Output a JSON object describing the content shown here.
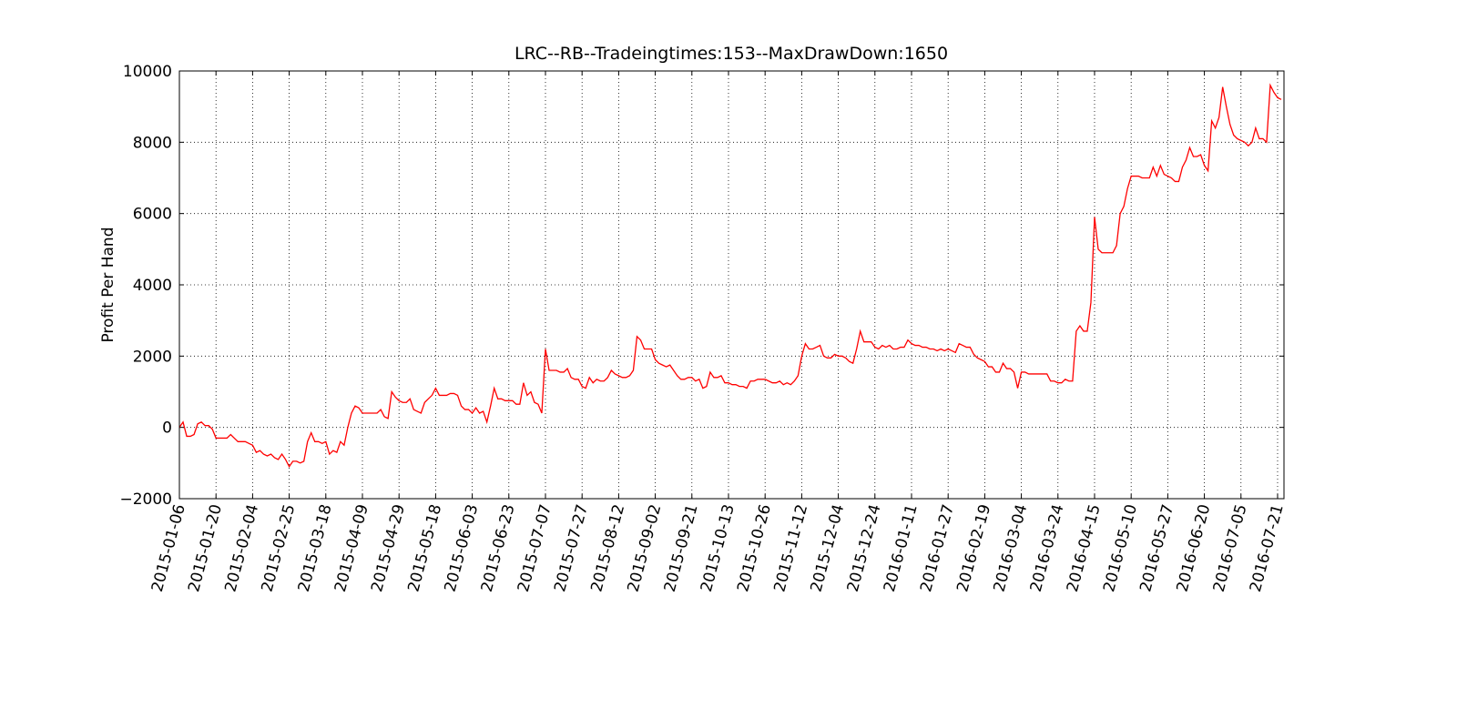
{
  "chart_data": {
    "type": "line",
    "title": "LRC--RB--Tradeingtimes:153--MaxDrawDown:1650",
    "ylabel": "Profit Per Hand",
    "color": "#ff0000",
    "grid": true,
    "ylim": [
      -2000,
      10000
    ],
    "yticks": [
      {
        "value": -2000,
        "label": "−2000"
      },
      0,
      2000,
      4000,
      6000,
      8000,
      10000
    ],
    "categories": [
      "2015-01-06",
      null,
      null,
      null,
      null,
      null,
      null,
      null,
      null,
      null,
      "2015-01-20",
      null,
      null,
      null,
      null,
      null,
      null,
      null,
      null,
      null,
      "2015-02-04",
      null,
      null,
      null,
      null,
      null,
      null,
      null,
      null,
      null,
      "2015-02-25",
      null,
      null,
      null,
      null,
      null,
      null,
      null,
      null,
      null,
      "2015-03-18",
      null,
      null,
      null,
      null,
      null,
      null,
      null,
      null,
      null,
      "2015-04-09",
      null,
      null,
      null,
      null,
      null,
      null,
      null,
      null,
      null,
      "2015-04-29",
      null,
      null,
      null,
      null,
      null,
      null,
      null,
      null,
      null,
      "2015-05-18",
      null,
      null,
      null,
      null,
      null,
      null,
      null,
      null,
      null,
      "2015-06-03",
      null,
      null,
      null,
      null,
      null,
      null,
      null,
      null,
      null,
      "2015-06-23",
      null,
      null,
      null,
      null,
      null,
      null,
      null,
      null,
      null,
      "2015-07-07",
      null,
      null,
      null,
      null,
      null,
      null,
      null,
      null,
      null,
      "2015-07-27",
      null,
      null,
      null,
      null,
      null,
      null,
      null,
      null,
      null,
      "2015-08-12",
      null,
      null,
      null,
      null,
      null,
      null,
      null,
      null,
      null,
      "2015-09-02",
      null,
      null,
      null,
      null,
      null,
      null,
      null,
      null,
      null,
      "2015-09-21",
      null,
      null,
      null,
      null,
      null,
      null,
      null,
      null,
      null,
      "2015-10-13",
      null,
      null,
      null,
      null,
      null,
      null,
      null,
      null,
      null,
      "2015-10-26",
      null,
      null,
      null,
      null,
      null,
      null,
      null,
      null,
      null,
      "2015-11-12",
      null,
      null,
      null,
      null,
      null,
      null,
      null,
      null,
      null,
      "2015-12-04",
      null,
      null,
      null,
      null,
      null,
      null,
      null,
      null,
      null,
      "2015-12-24",
      null,
      null,
      null,
      null,
      null,
      null,
      null,
      null,
      null,
      "2016-01-11",
      null,
      null,
      null,
      null,
      null,
      null,
      null,
      null,
      null,
      "2016-01-27",
      null,
      null,
      null,
      null,
      null,
      null,
      null,
      null,
      null,
      "2016-02-19",
      null,
      null,
      null,
      null,
      null,
      null,
      null,
      null,
      null,
      "2016-03-04",
      null,
      null,
      null,
      null,
      null,
      null,
      null,
      null,
      null,
      "2016-03-24",
      null,
      null,
      null,
      null,
      null,
      null,
      null,
      null,
      null,
      "2016-04-15",
      null,
      null,
      null,
      null,
      null,
      null,
      null,
      null,
      null,
      "2016-05-10",
      null,
      null,
      null,
      null,
      null,
      null,
      null,
      null,
      null,
      "2016-05-27",
      null,
      null,
      null,
      null,
      null,
      null,
      null,
      null,
      null,
      "2016-06-20",
      null,
      null,
      null,
      null,
      null,
      null,
      null,
      null,
      null,
      "2016-07-05",
      null,
      null,
      null,
      null,
      null,
      null,
      null,
      null,
      null,
      "2016-07-21",
      null
    ],
    "values": [
      0,
      150,
      -250,
      -250,
      -200,
      100,
      150,
      50,
      50,
      -50,
      -300,
      -300,
      -300,
      -300,
      -200,
      -300,
      -400,
      -400,
      -400,
      -450,
      -500,
      -700,
      -650,
      -750,
      -800,
      -750,
      -850,
      -900,
      -750,
      -900,
      -1100,
      -950,
      -950,
      -1000,
      -950,
      -400,
      -150,
      -400,
      -400,
      -450,
      -400,
      -750,
      -650,
      -700,
      -400,
      -500,
      0,
      400,
      600,
      550,
      400,
      400,
      400,
      400,
      400,
      500,
      300,
      250,
      1000,
      850,
      750,
      700,
      700,
      800,
      500,
      450,
      400,
      700,
      800,
      900,
      1100,
      900,
      900,
      900,
      950,
      950,
      900,
      600,
      500,
      500,
      400,
      550,
      400,
      450,
      150,
      600,
      1100,
      800,
      800,
      750,
      750,
      750,
      650,
      650,
      1250,
      900,
      1000,
      700,
      650,
      400,
      2200,
      1600,
      1600,
      1600,
      1550,
      1550,
      1650,
      1400,
      1350,
      1350,
      1150,
      1100,
      1400,
      1250,
      1350,
      1300,
      1300,
      1400,
      1600,
      1500,
      1450,
      1400,
      1400,
      1450,
      1600,
      2550,
      2450,
      2200,
      2200,
      2200,
      1900,
      1800,
      1750,
      1700,
      1750,
      1600,
      1450,
      1350,
      1350,
      1400,
      1400,
      1300,
      1350,
      1100,
      1150,
      1550,
      1400,
      1400,
      1450,
      1250,
      1250,
      1200,
      1200,
      1150,
      1150,
      1100,
      1300,
      1300,
      1350,
      1350,
      1350,
      1300,
      1250,
      1250,
      1300,
      1200,
      1250,
      1200,
      1300,
      1450,
      2000,
      2350,
      2200,
      2200,
      2250,
      2300,
      2000,
      1950,
      1950,
      2050,
      2000,
      2000,
      1950,
      1850,
      1800,
      2200,
      2700,
      2400,
      2400,
      2400,
      2250,
      2200,
      2300,
      2250,
      2300,
      2200,
      2200,
      2250,
      2250,
      2450,
      2350,
      2300,
      2300,
      2250,
      2250,
      2200,
      2200,
      2150,
      2200,
      2150,
      2200,
      2150,
      2100,
      2350,
      2300,
      2250,
      2250,
      2050,
      1950,
      1900,
      1850,
      1700,
      1700,
      1550,
      1550,
      1800,
      1650,
      1650,
      1550,
      1100,
      1550,
      1550,
      1500,
      1500,
      1500,
      1500,
      1500,
      1500,
      1300,
      1300,
      1250,
      1250,
      1350,
      1300,
      1300,
      2700,
      2850,
      2700,
      2700,
      3500,
      5900,
      5000,
      4900,
      4900,
      4900,
      4900,
      5100,
      6000,
      6200,
      6700,
      7050,
      7050,
      7050,
      7000,
      7000,
      7000,
      7300,
      7050,
      7350,
      7100,
      7050,
      7000,
      6900,
      6900,
      7300,
      7500,
      7850,
      7600,
      7600,
      7650,
      7350,
      7200,
      8600,
      8400,
      8700,
      9550,
      9000,
      8500,
      8200,
      8100,
      8050,
      8000,
      7900,
      8000,
      8400,
      8100,
      8100,
      8000,
      9600,
      9400,
      9250,
      9200
    ]
  }
}
